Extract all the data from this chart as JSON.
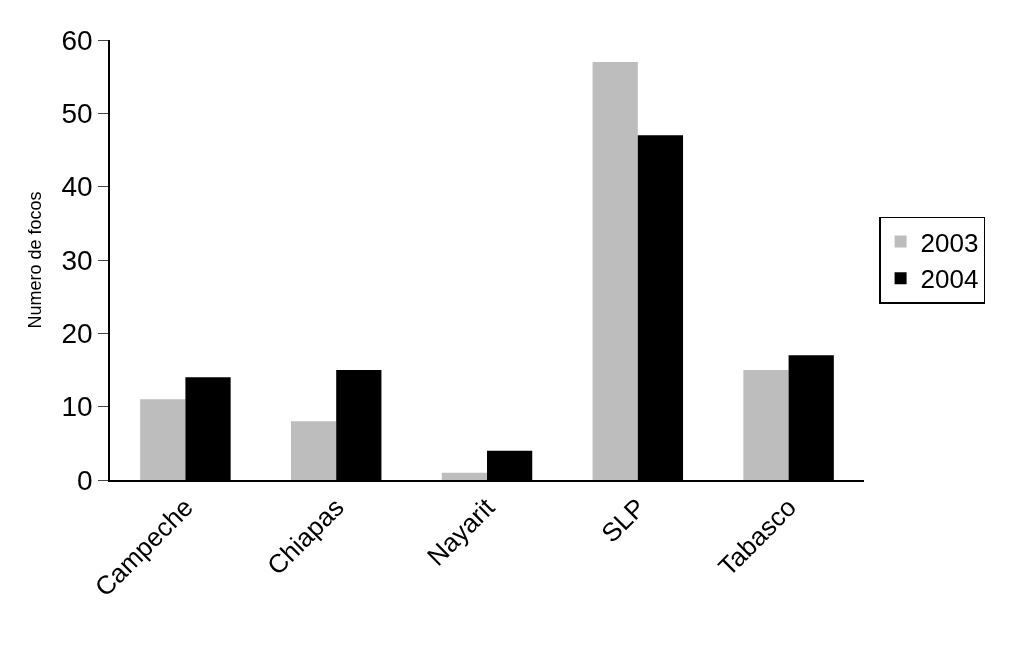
{
  "chart_data": {
    "type": "bar",
    "ylabel": "Numero de focos",
    "categories": [
      "Campeche",
      "Chiapas",
      "Nayarit",
      "SLP",
      "Tabasco"
    ],
    "series": [
      {
        "name": "2003",
        "color": "#bdbdbd",
        "values": [
          11,
          8,
          1,
          57,
          15
        ]
      },
      {
        "name": "2004",
        "color": "#000000",
        "values": [
          14,
          15,
          4,
          47,
          17
        ]
      }
    ],
    "ylim": [
      0,
      60
    ],
    "yticks": [
      0,
      10,
      20,
      30,
      40,
      50,
      60
    ],
    "grid": false,
    "legend": "right"
  }
}
